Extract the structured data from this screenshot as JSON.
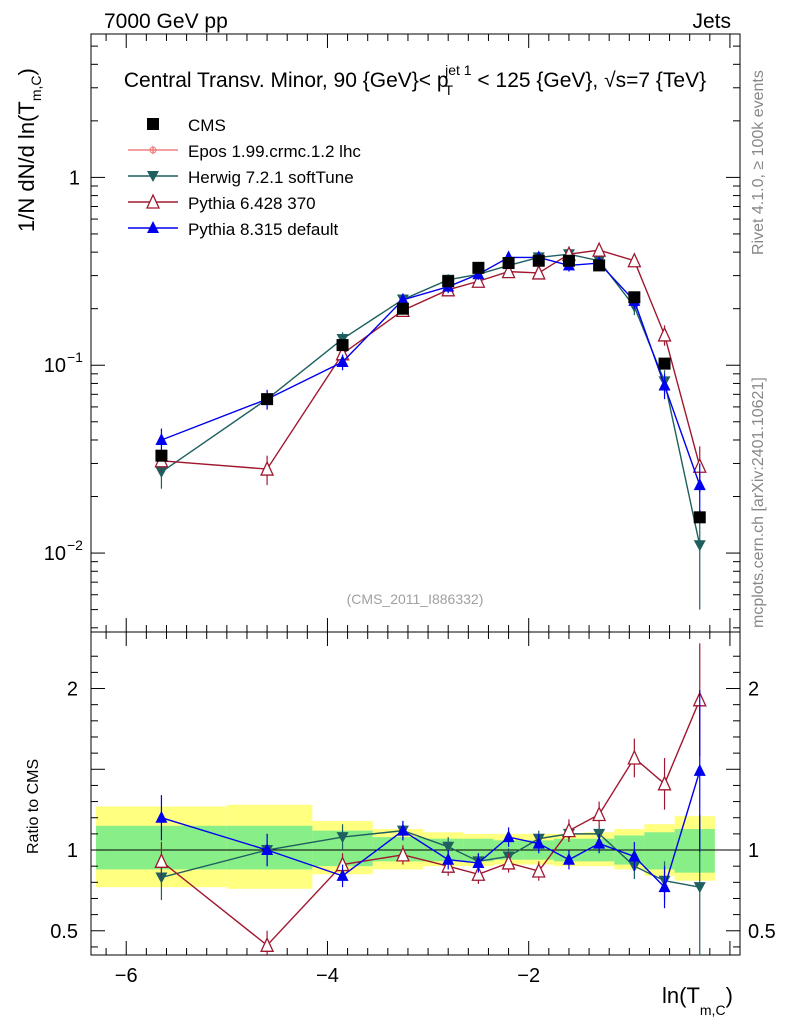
{
  "header": {
    "left": "7000 GeV pp",
    "right": "Jets",
    "side_rivet": "Rivet 4.1.0, ≥ 100k events",
    "side_mcplots": "mcplots.cern.ch [arXiv:2401.10621]",
    "watermark": "(CMS_2011_I886332)"
  },
  "chart_data": {
    "type": "line",
    "title": "Central Transv. Minor, 90 {GeV}< p_T^{jet 1} < 125 {GeV}, √s=7 {TeV}",
    "title_parts": {
      "prefix": "Central Transv. Minor, 90 {GeV}< p",
      "sub": "T",
      "sup": "jet 1",
      "mid": " < 125 {GeV}, ",
      "sqrt": "√",
      "s_part": "s=7 {TeV}"
    },
    "ylabel_main": "1/N    dN/d ln(T",
    "ylabel_main_sub": "m,C",
    "ylabel_ratio": "Ratio to CMS",
    "xlabel": "ln(T",
    "xlabel_sub": "m,C",
    "xlim": [
      -6.35,
      0.1
    ],
    "ylim_main": [
      0.0038,
      5.8
    ],
    "ylim_ratio": [
      0.35,
      2.35
    ],
    "x_ticks": [
      -6,
      -4,
      -2
    ],
    "x_tick_labels": [
      "−6",
      "−4",
      "−2"
    ],
    "y_ticks_main": [
      {
        "value": 1,
        "base": "1",
        "exp": ""
      },
      {
        "value": 0.1,
        "base": "10",
        "exp": "−1"
      },
      {
        "value": 0.01,
        "base": "10",
        "exp": "−2"
      }
    ],
    "y_ticks_ratio": [
      {
        "value": 0.5,
        "label": "0.5"
      },
      {
        "value": 1,
        "label": "1"
      },
      {
        "value": 2,
        "label": "2"
      }
    ],
    "bin_edges": [
      -6.3,
      -5.0,
      -4.15,
      -3.55,
      -3.05,
      -2.65,
      -2.35,
      -2.05,
      -1.75,
      -1.45,
      -1.15,
      -0.85,
      -0.55,
      -0.15
    ],
    "band_inner": [
      [
        0.88,
        1.15
      ],
      [
        0.88,
        1.15
      ],
      [
        0.9,
        1.12
      ],
      [
        0.93,
        1.08
      ],
      [
        0.93,
        1.07
      ],
      [
        0.93,
        1.07
      ],
      [
        0.94,
        1.06
      ],
      [
        0.94,
        1.06
      ],
      [
        0.93,
        1.07
      ],
      [
        0.93,
        1.07
      ],
      [
        0.91,
        1.09
      ],
      [
        0.88,
        1.11
      ],
      [
        0.86,
        1.13
      ]
    ],
    "band_outer": [
      [
        0.77,
        1.27
      ],
      [
        0.76,
        1.28
      ],
      [
        0.85,
        1.18
      ],
      [
        0.88,
        1.13
      ],
      [
        0.9,
        1.11
      ],
      [
        0.9,
        1.1
      ],
      [
        0.91,
        1.1
      ],
      [
        0.91,
        1.1
      ],
      [
        0.9,
        1.1
      ],
      [
        0.9,
        1.11
      ],
      [
        0.88,
        1.13
      ],
      [
        0.84,
        1.16
      ],
      [
        0.81,
        1.21
      ]
    ],
    "series": [
      {
        "name": "CMS",
        "color": "#000000",
        "marker": "square",
        "line": false,
        "x": [
          -5.65,
          -4.6,
          -3.85,
          -3.25,
          -2.8,
          -2.5,
          -2.2,
          -1.9,
          -1.6,
          -1.3,
          -0.95,
          -0.65,
          -0.3
        ],
        "y": [
          0.033,
          0.066,
          0.128,
          0.2,
          0.28,
          0.33,
          0.35,
          0.36,
          0.36,
          0.34,
          0.23,
          0.102,
          0.0155
        ],
        "err": [
          0.002,
          0.004,
          0.007,
          0.01,
          0.012,
          0.013,
          0.014,
          0.014,
          0.014,
          0.014,
          0.01,
          0.005,
          0.0008
        ],
        "ratio": [
          1,
          1,
          1,
          1,
          1,
          1,
          1,
          1,
          1,
          1,
          1,
          1,
          1
        ],
        "ratio_err": [
          0,
          0,
          0,
          0,
          0,
          0,
          0,
          0,
          0,
          0,
          0,
          0,
          0
        ]
      },
      {
        "name": "Epos 1.99.crmc.1.2 lhc",
        "color": "#f08080",
        "marker": "cross",
        "line": true,
        "x": [],
        "y": [],
        "err": [],
        "ratio": [],
        "ratio_err": []
      },
      {
        "name": "Herwig 7.2.1 softTune",
        "color": "#1f5f5f",
        "marker": "triangle-down",
        "line": true,
        "x": [
          -5.65,
          -4.6,
          -3.85,
          -3.25,
          -2.8,
          -2.5,
          -2.2,
          -1.9,
          -1.6,
          -1.3,
          -0.95,
          -0.65,
          -0.3
        ],
        "y": [
          0.027,
          0.066,
          0.138,
          0.224,
          0.285,
          0.305,
          0.34,
          0.375,
          0.39,
          0.36,
          0.205,
          0.082,
          0.011
        ],
        "err": [
          0.005,
          0.007,
          0.012,
          0.015,
          0.02,
          0.02,
          0.025,
          0.025,
          0.025,
          0.025,
          0.02,
          0.012,
          0.006
        ],
        "ratio": [
          0.83,
          1.0,
          1.08,
          1.12,
          1.02,
          0.93,
          0.96,
          1.07,
          1.1,
          1.1,
          0.9,
          0.81,
          0.77
        ],
        "ratio_err": [
          0.14,
          0.1,
          0.08,
          0.06,
          0.06,
          0.05,
          0.05,
          0.05,
          0.05,
          0.05,
          0.08,
          0.12,
          0.45
        ]
      },
      {
        "name": "Pythia 6.428 370",
        "color": "#a01830",
        "marker": "triangle-open",
        "line": true,
        "x": [
          -5.65,
          -4.6,
          -3.85,
          -3.25,
          -2.8,
          -2.5,
          -2.2,
          -1.9,
          -1.6,
          -1.3,
          -0.95,
          -0.65,
          -0.3
        ],
        "y": [
          0.031,
          0.028,
          0.115,
          0.196,
          0.252,
          0.28,
          0.315,
          0.31,
          0.39,
          0.41,
          0.36,
          0.145,
          0.029
        ],
        "err": [
          0.004,
          0.005,
          0.01,
          0.012,
          0.018,
          0.02,
          0.02,
          0.022,
          0.025,
          0.028,
          0.025,
          0.018,
          0.008
        ],
        "ratio": [
          0.93,
          0.41,
          0.91,
          0.97,
          0.9,
          0.85,
          0.92,
          0.87,
          1.12,
          1.22,
          1.57,
          1.41,
          1.93
        ],
        "ratio_err": [
          0.12,
          0.09,
          0.07,
          0.06,
          0.06,
          0.06,
          0.06,
          0.06,
          0.07,
          0.08,
          0.12,
          0.16,
          0.35
        ]
      },
      {
        "name": "Pythia 8.315 default",
        "color": "#0000ee",
        "marker": "triangle-up",
        "line": true,
        "x": [
          -5.65,
          -4.6,
          -3.85,
          -3.25,
          -2.8,
          -2.5,
          -2.2,
          -1.9,
          -1.6,
          -1.3,
          -0.95,
          -0.65,
          -0.3
        ],
        "y": [
          0.04,
          0.066,
          0.104,
          0.223,
          0.262,
          0.305,
          0.375,
          0.375,
          0.34,
          0.35,
          0.22,
          0.078,
          0.023
        ],
        "err": [
          0.006,
          0.008,
          0.01,
          0.015,
          0.02,
          0.02,
          0.025,
          0.025,
          0.025,
          0.025,
          0.02,
          0.012,
          0.007
        ],
        "ratio": [
          1.2,
          1.0,
          0.84,
          1.12,
          0.94,
          0.92,
          1.08,
          1.04,
          0.94,
          1.04,
          0.96,
          0.77,
          1.49
        ],
        "ratio_err": [
          0.14,
          0.1,
          0.07,
          0.06,
          0.06,
          0.06,
          0.06,
          0.06,
          0.06,
          0.06,
          0.09,
          0.13,
          0.5
        ]
      }
    ]
  }
}
